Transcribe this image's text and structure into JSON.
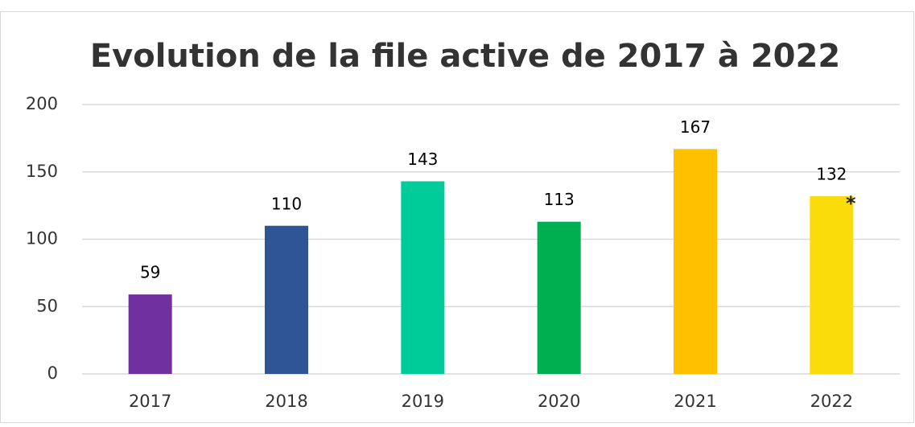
{
  "chart_data": {
    "type": "bar",
    "title": "Evolution de la file active de 2017 à 2022",
    "categories": [
      "2017",
      "2018",
      "2019",
      "2020",
      "2021",
      "2022"
    ],
    "values": [
      59,
      110,
      143,
      113,
      167,
      132
    ],
    "colors": [
      "#7030a0",
      "#2f5597",
      "#00cc99",
      "#00b050",
      "#ffc000",
      "#fadc0a"
    ],
    "annotation": "*",
    "ylim": [
      0,
      200
    ],
    "yticks": [
      0,
      50,
      100,
      150,
      200
    ],
    "grid": true
  }
}
